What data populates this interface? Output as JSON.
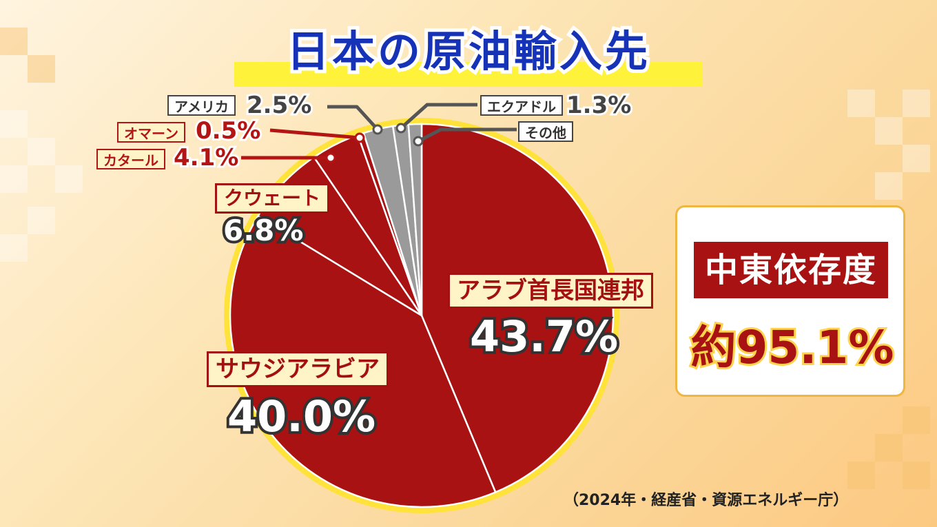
{
  "title": "日本の原油輸入先",
  "source": "（2024年・経産省・資源エネルギー庁）",
  "summary": {
    "label": "中東依存度",
    "value": "約95.1%"
  },
  "colors": {
    "middle_east_slice": "#a81212",
    "other_slice": "#9a9a9a",
    "pie_outline": "#ffe23a",
    "title_text": "#1633b8"
  },
  "chart_data": {
    "type": "pie",
    "title": "日本の原油輸入先",
    "slices": [
      {
        "label": "アラブ首長国連邦",
        "display": "43.7%",
        "value": 43.7,
        "group": "middle_east"
      },
      {
        "label": "サウジアラビア",
        "display": "40.0%",
        "value": 40.0,
        "group": "middle_east"
      },
      {
        "label": "クウェート",
        "display": "6.8%",
        "value": 6.8,
        "group": "middle_east"
      },
      {
        "label": "カタール",
        "display": "4.1%",
        "value": 4.1,
        "group": "middle_east"
      },
      {
        "label": "オマーン",
        "display": "0.5%",
        "value": 0.5,
        "group": "middle_east"
      },
      {
        "label": "アメリカ",
        "display": "2.5%",
        "value": 2.5,
        "group": "other"
      },
      {
        "label": "エクアドル",
        "display": "1.3%",
        "value": 1.3,
        "group": "other"
      },
      {
        "label": "その他",
        "display": "",
        "value": 1.1,
        "group": "other"
      }
    ]
  }
}
